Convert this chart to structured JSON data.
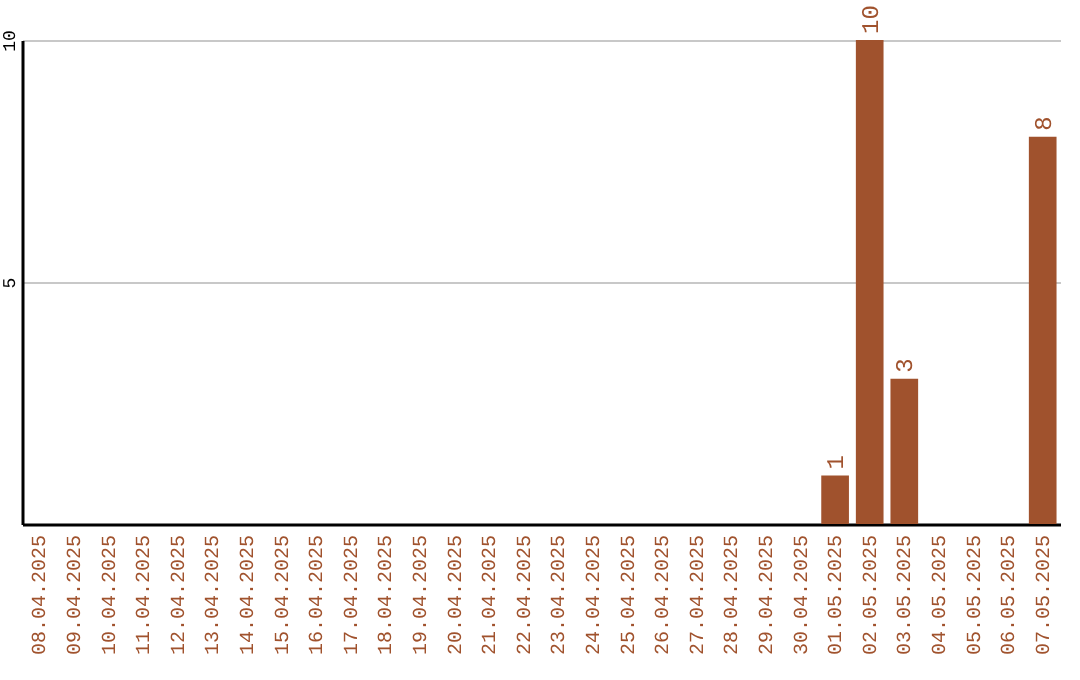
{
  "chart_data": {
    "type": "bar",
    "categories": [
      "08.04.2025",
      "09.04.2025",
      "10.04.2025",
      "11.04.2025",
      "12.04.2025",
      "13.04.2025",
      "14.04.2025",
      "15.04.2025",
      "16.04.2025",
      "17.04.2025",
      "18.04.2025",
      "19.04.2025",
      "20.04.2025",
      "21.04.2025",
      "22.04.2025",
      "23.04.2025",
      "24.04.2025",
      "25.04.2025",
      "26.04.2025",
      "27.04.2025",
      "28.04.2025",
      "29.04.2025",
      "30.04.2025",
      "01.05.2025",
      "02.05.2025",
      "03.05.2025",
      "04.05.2025",
      "05.05.2025",
      "06.05.2025",
      "07.05.2025"
    ],
    "values": [
      0,
      0,
      0,
      0,
      0,
      0,
      0,
      0,
      0,
      0,
      0,
      0,
      0,
      0,
      0,
      0,
      0,
      0,
      0,
      0,
      0,
      0,
      0,
      1,
      10,
      3,
      0,
      0,
      0,
      8
    ],
    "value_labels": [
      null,
      null,
      null,
      null,
      null,
      null,
      null,
      null,
      null,
      null,
      null,
      null,
      null,
      null,
      null,
      null,
      null,
      null,
      null,
      null,
      null,
      null,
      null,
      "1",
      "10",
      "3",
      null,
      null,
      null,
      "8"
    ],
    "color": "#a0522d",
    "ylim": [
      0,
      10
    ],
    "yticks": [
      5,
      10
    ],
    "grid": "y"
  }
}
